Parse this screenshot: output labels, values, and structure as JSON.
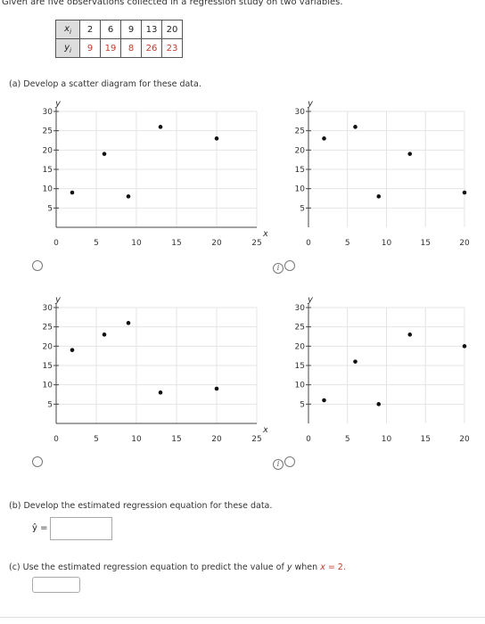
{
  "intro": "Given are five observations collected in a regression study on two variables.",
  "table": {
    "x_label": "x",
    "x_sub": "i",
    "y_label": "y",
    "y_sub": "i",
    "x_values": [
      "2",
      "6",
      "9",
      "13",
      "20"
    ],
    "y_values": [
      "9",
      "19",
      "8",
      "26",
      "23"
    ]
  },
  "part_a": "(a)  Develop a scatter diagram for these data.",
  "part_b": "(b)  Develop the estimated regression equation for these data.",
  "part_c_prefix": "(c)  Use the estimated regression equation to predict the value of ",
  "part_c_var": "y",
  "part_c_mid": " when ",
  "part_c_x": "x",
  "part_c_eq": " = 2.",
  "yhat_label": "ŷ =",
  "answer_b_value": "",
  "answer_c_value": "",
  "chart_data": [
    {
      "type": "scatter",
      "name": "top-left",
      "x": [
        2,
        6,
        9,
        13,
        20
      ],
      "y": [
        9,
        19,
        8,
        26,
        23
      ],
      "xlabel": "x",
      "ylabel": "y",
      "xticks": [
        0,
        5,
        10,
        15,
        20,
        25
      ],
      "yticks": [
        5,
        10,
        15,
        20,
        25,
        30
      ],
      "xlim": [
        0,
        25
      ],
      "ylim": [
        0,
        30
      ],
      "grid": true
    },
    {
      "type": "scatter",
      "name": "top-right",
      "x": [
        2,
        6,
        9,
        13,
        20
      ],
      "y": [
        23,
        26,
        8,
        19,
        9
      ],
      "xlabel": "",
      "ylabel": "y",
      "xticks": [
        0,
        5,
        10,
        15,
        20
      ],
      "yticks": [
        5,
        10,
        15,
        20,
        25,
        30
      ],
      "xlim": [
        0,
        20
      ],
      "ylim": [
        0,
        30
      ],
      "grid": true
    },
    {
      "type": "scatter",
      "name": "bottom-left",
      "x": [
        2,
        6,
        9,
        13,
        20
      ],
      "y": [
        19,
        23,
        26,
        8,
        9
      ],
      "xlabel": "x",
      "ylabel": "y",
      "xticks": [
        0,
        5,
        10,
        15,
        20,
        25
      ],
      "yticks": [
        5,
        10,
        15,
        20,
        25,
        30
      ],
      "xlim": [
        0,
        25
      ],
      "ylim": [
        0,
        30
      ],
      "grid": true
    },
    {
      "type": "scatter",
      "name": "bottom-right",
      "x": [
        2,
        6,
        9,
        13,
        20
      ],
      "y": [
        6,
        16,
        5,
        23,
        20
      ],
      "xlabel": "",
      "ylabel": "y",
      "xticks": [
        0,
        5,
        10,
        15,
        20
      ],
      "yticks": [
        5,
        10,
        15,
        20,
        25,
        30
      ],
      "xlim": [
        0,
        20
      ],
      "ylim": [
        0,
        30
      ],
      "grid": true
    }
  ]
}
